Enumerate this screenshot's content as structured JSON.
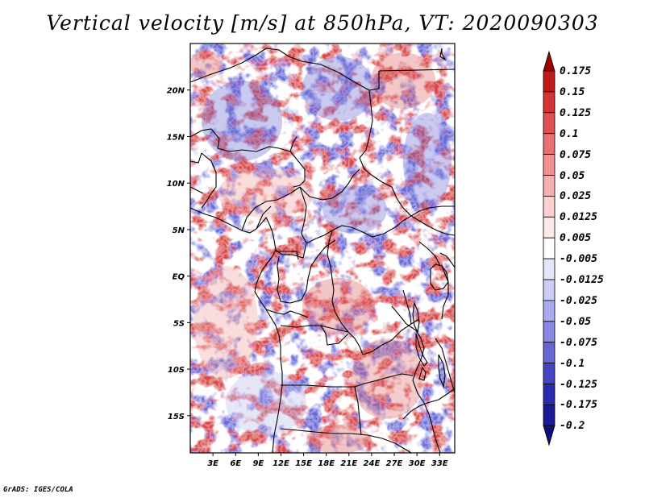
{
  "title": "Vertical velocity [m/s] at 850hPa, VT: 2020090303",
  "footer": "GrADS: IGES/COLA",
  "map": {
    "region": "Central Africa",
    "lat_range": [
      -19,
      25
    ],
    "lon_range": [
      0,
      35
    ],
    "lat_ticks": [
      {
        "lat": 20,
        "label": "20N"
      },
      {
        "lat": 15,
        "label": "15N"
      },
      {
        "lat": 10,
        "label": "10N"
      },
      {
        "lat": 5,
        "label": "5N"
      },
      {
        "lat": 0,
        "label": "EQ"
      },
      {
        "lat": -5,
        "label": "5S"
      },
      {
        "lat": -10,
        "label": "10S"
      },
      {
        "lat": -15,
        "label": "15S"
      }
    ],
    "lon_ticks": [
      {
        "lon": 3,
        "label": "3E"
      },
      {
        "lon": 6,
        "label": "6E"
      },
      {
        "lon": 9,
        "label": "9E"
      },
      {
        "lon": 12,
        "label": "12E"
      },
      {
        "lon": 15,
        "label": "15E"
      },
      {
        "lon": 18,
        "label": "18E"
      },
      {
        "lon": 21,
        "label": "21E"
      },
      {
        "lon": 24,
        "label": "24E"
      },
      {
        "lon": 27,
        "label": "27E"
      },
      {
        "lon": 30,
        "label": "30E"
      },
      {
        "lon": 33,
        "label": "33E"
      }
    ]
  },
  "colorbar": {
    "levels": [
      "0.175",
      "0.15",
      "0.125",
      "0.1",
      "0.075",
      "0.05",
      "0.025",
      "0.0125",
      "0.005",
      "-0.005",
      "-0.0125",
      "-0.025",
      "-0.05",
      "-0.075",
      "-0.1",
      "-0.125",
      "-0.175",
      "-0.2"
    ],
    "colors": [
      "#9e0000",
      "#c21a1a",
      "#d63333",
      "#e05050",
      "#e87070",
      "#f09090",
      "#f5b0b0",
      "#fad0d0",
      "#fde8e8",
      "#ffffff",
      "#e4e4fb",
      "#ccccf5",
      "#aaaaee",
      "#8888e2",
      "#6666d6",
      "#4444c4",
      "#2a2ab0",
      "#1a1a98",
      "#0f0f80"
    ]
  },
  "colors": {
    "up": "#d63333",
    "down": "#3a3ac8",
    "border": "#000000"
  }
}
